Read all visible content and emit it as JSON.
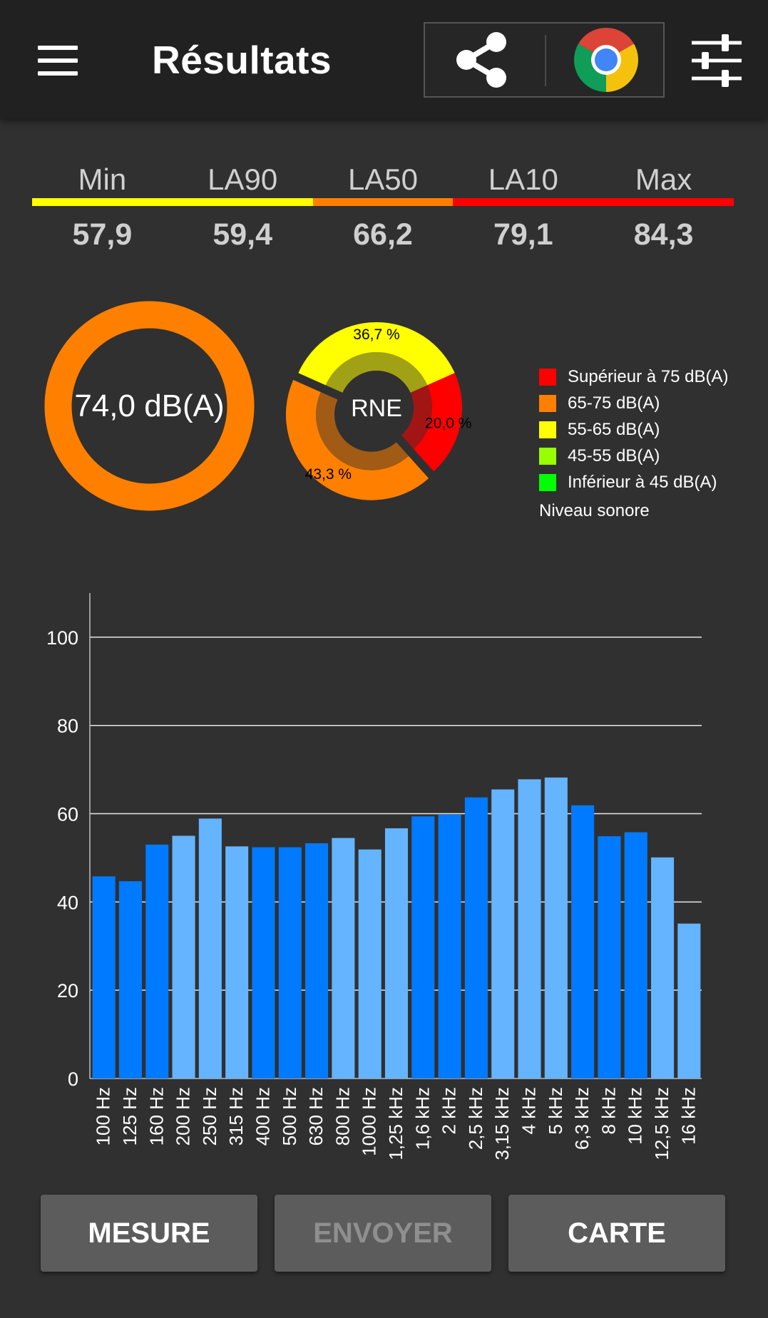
{
  "header": {
    "title": "Résultats",
    "icons": [
      "menu-icon",
      "share-icon",
      "chrome-icon",
      "tune-icon"
    ]
  },
  "stats": {
    "items": [
      {
        "label": "Min",
        "value": "57,9"
      },
      {
        "label": "LA90",
        "value": "59,4"
      },
      {
        "label": "LA50",
        "value": "66,2"
      },
      {
        "label": "LA10",
        "value": "79,1"
      },
      {
        "label": "Max",
        "value": "84,3"
      }
    ],
    "bar_colors": [
      "#ffff00",
      "#ffff00",
      "#ff8000",
      "#ff0000",
      "#ff0000"
    ]
  },
  "gauge": {
    "value_label": "74,0 dB(A)",
    "color": "#ff8000"
  },
  "pie": {
    "center_label": "RNE",
    "slices": [
      {
        "label": "36,7 %",
        "value": 36.7,
        "color": "#ffff00"
      },
      {
        "label": "20,0 %",
        "value": 20.0,
        "color": "#ff0000"
      },
      {
        "label": "43,3 %",
        "value": 43.3,
        "color": "#ff8000"
      }
    ],
    "exploded_slice": "43,3 %"
  },
  "legend": {
    "items": [
      {
        "label": "Supérieur à 75 dB(A)",
        "color": "#ff0000"
      },
      {
        "label": "65-75 dB(A)",
        "color": "#ff8000"
      },
      {
        "label": "55-65 dB(A)",
        "color": "#ffff00"
      },
      {
        "label": "45-55 dB(A)",
        "color": "#99ff00"
      },
      {
        "label": "Inférieur à 45 dB(A)",
        "color": "#00ff00"
      }
    ],
    "title": "Niveau sonore"
  },
  "chart_data": {
    "type": "bar",
    "categories": [
      "100 Hz",
      "125 Hz",
      "160 Hz",
      "200 Hz",
      "250 Hz",
      "315 Hz",
      "400 Hz",
      "500 Hz",
      "630 Hz",
      "800 Hz",
      "1000 Hz",
      "1,25 kHz",
      "1,6 kHz",
      "2 kHz",
      "2,5 kHz",
      "3,15 kHz",
      "4 kHz",
      "5 kHz",
      "6,3 kHz",
      "8 kHz",
      "10 kHz",
      "12,5 kHz",
      "16 kHz"
    ],
    "values": [
      45.8,
      44.7,
      53.0,
      55.0,
      58.9,
      52.6,
      52.4,
      52.4,
      53.3,
      54.5,
      51.9,
      56.7,
      59.4,
      59.8,
      63.7,
      65.5,
      67.8,
      68.2,
      61.9,
      54.9,
      55.8,
      50.1,
      35.1
    ],
    "bar_colors": [
      "#007aff",
      "#007aff",
      "#007aff",
      "#64b4ff",
      "#64b4ff",
      "#64b4ff",
      "#007aff",
      "#007aff",
      "#007aff",
      "#64b4ff",
      "#64b4ff",
      "#64b4ff",
      "#007aff",
      "#007aff",
      "#007aff",
      "#64b4ff",
      "#64b4ff",
      "#64b4ff",
      "#007aff",
      "#007aff",
      "#007aff",
      "#64b4ff",
      "#64b4ff"
    ],
    "yticks": [
      0,
      20,
      40,
      60,
      80,
      100
    ],
    "ylim": [
      0,
      110
    ],
    "grid": true,
    "title": "",
    "xlabel": "",
    "ylabel": ""
  },
  "buttons": {
    "mesure": "MESURE",
    "envoyer": "ENVOYER",
    "carte": "CARTE"
  }
}
